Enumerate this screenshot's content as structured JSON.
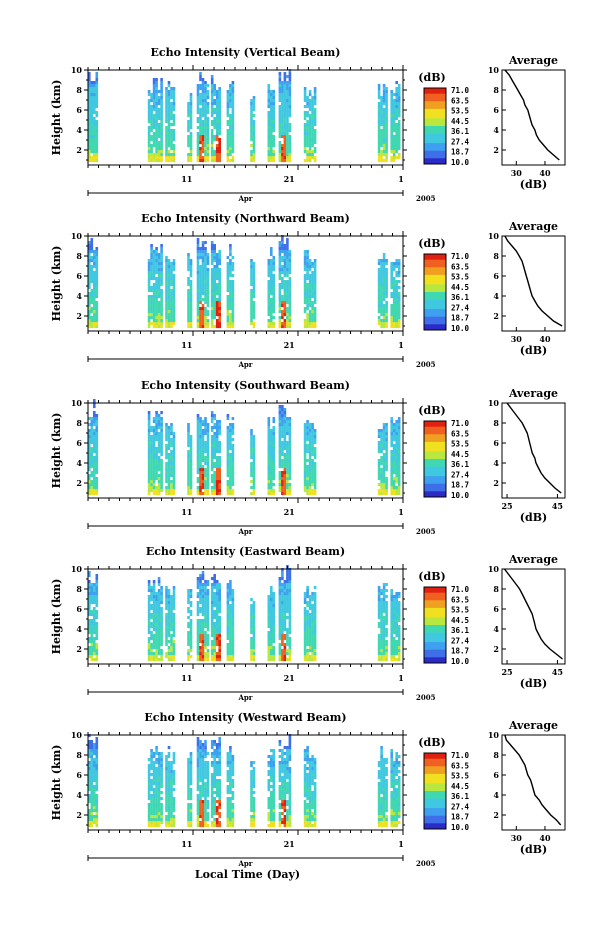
{
  "chart_data": [
    {
      "type": "heatmap",
      "title": "Echo Intensity (Vertical Beam)",
      "ylabel": "Height (km)",
      "yticks": [
        2,
        4,
        6,
        8,
        10
      ],
      "ylim": [
        0.5,
        10
      ],
      "xticks": [
        "11",
        "21",
        "1"
      ],
      "xmonth": "Apr",
      "xyear": "2005",
      "colorbar": {
        "unit": "(dB)",
        "ticks": [
          "71.0",
          "63.5",
          "53.5",
          "44.5",
          "36.1",
          "27.4",
          "18.7",
          "10.0"
        ]
      },
      "profile": {
        "title": "Average",
        "xlabel": "(dB)",
        "xticks": [
          "30",
          "40"
        ],
        "xlim": [
          25,
          47
        ],
        "yticks": [
          2,
          4,
          6,
          8,
          10
        ],
        "height": [
          10,
          9.5,
          9,
          8.5,
          8,
          7.5,
          7,
          6.5,
          6,
          5.5,
          5,
          4.5,
          4,
          3.5,
          3,
          2.5,
          2,
          1.5,
          1
        ],
        "db": [
          26,
          27.5,
          28.5,
          29.5,
          30.5,
          31.5,
          32.5,
          33,
          34,
          34.5,
          35,
          35.5,
          36.5,
          37,
          38,
          39.5,
          41,
          43,
          45
        ]
      }
    },
    {
      "type": "heatmap",
      "title": "Echo Intensity (Northward Beam)",
      "ylabel": "Height (km)",
      "yticks": [
        2,
        4,
        6,
        8,
        10
      ],
      "ylim": [
        0.5,
        10
      ],
      "xticks": [
        "11",
        "21",
        "1"
      ],
      "xmonth": "Apr",
      "xyear": "2005",
      "colorbar": {
        "unit": "(dB)",
        "ticks": [
          "71.0",
          "63.5",
          "53.5",
          "44.5",
          "36.1",
          "27.4",
          "18.7",
          "10.0"
        ]
      },
      "profile": {
        "title": "Average",
        "xlabel": "(dB)",
        "xticks": [
          "30",
          "40"
        ],
        "xlim": [
          25,
          47
        ],
        "yticks": [
          2,
          4,
          6,
          8,
          10
        ],
        "height": [
          10,
          9.5,
          9,
          8.5,
          8,
          7.5,
          7,
          6.5,
          6,
          5.5,
          5,
          4.5,
          4,
          3.5,
          3,
          2.5,
          2,
          1.5,
          1
        ],
        "db": [
          26,
          27,
          28.5,
          30,
          31,
          32,
          32.5,
          33,
          33.5,
          34,
          34.5,
          35,
          35.5,
          36.5,
          37.5,
          39,
          41,
          43,
          46
        ]
      }
    },
    {
      "type": "heatmap",
      "title": "Echo Intensity (Southward Beam)",
      "ylabel": "Height (km)",
      "yticks": [
        2,
        4,
        6,
        8,
        10
      ],
      "ylim": [
        0.5,
        10
      ],
      "xticks": [
        "11",
        "21",
        "1"
      ],
      "xmonth": "Apr",
      "xyear": "2005",
      "colorbar": {
        "unit": "(dB)",
        "ticks": [
          "71.0",
          "63.5",
          "53.5",
          "44.5",
          "36.1",
          "27.4",
          "18.7",
          "10.0"
        ]
      },
      "profile": {
        "title": "Average",
        "xlabel": "(dB)",
        "xticks": [
          "25",
          "45"
        ],
        "xlim": [
          23,
          48
        ],
        "yticks": [
          2,
          4,
          6,
          8,
          10
        ],
        "height": [
          10,
          9.5,
          9,
          8.5,
          8,
          7.5,
          7,
          6.5,
          6,
          5.5,
          5,
          4.5,
          4,
          3.5,
          3,
          2.5,
          2,
          1.5,
          1
        ],
        "db": [
          25,
          26.5,
          28,
          29.5,
          31,
          32,
          33,
          33.5,
          34,
          34.5,
          35,
          36,
          36.5,
          37.5,
          38.5,
          40,
          42,
          44,
          46.5
        ]
      }
    },
    {
      "type": "heatmap",
      "title": "Echo Intensity (Eastward Beam)",
      "ylabel": "Height (km)",
      "yticks": [
        2,
        4,
        6,
        8,
        10
      ],
      "ylim": [
        0.5,
        10
      ],
      "xticks": [
        "11",
        "21",
        "1"
      ],
      "xmonth": "Apr",
      "xyear": "2005",
      "colorbar": {
        "unit": "(dB)",
        "ticks": [
          "71.0",
          "63.5",
          "53.5",
          "44.5",
          "36.1",
          "27.4",
          "18.7",
          "10.0"
        ]
      },
      "profile": {
        "title": "Average",
        "xlabel": "(dB)",
        "xticks": [
          "25",
          "45"
        ],
        "xlim": [
          23,
          48
        ],
        "yticks": [
          2,
          4,
          6,
          8,
          10
        ],
        "height": [
          10,
          9.5,
          9,
          8.5,
          8,
          7.5,
          7,
          6.5,
          6,
          5.5,
          5,
          4.5,
          4,
          3.5,
          3,
          2.5,
          2,
          1.5,
          1
        ],
        "db": [
          24,
          25.5,
          27,
          28.5,
          30,
          31,
          32,
          33,
          34,
          35,
          35.5,
          36,
          36.5,
          37.5,
          38.5,
          40,
          42,
          44.5,
          47
        ]
      }
    },
    {
      "type": "heatmap",
      "title": "Echo Intensity (Westward Beam)",
      "ylabel": "Height (km)",
      "yticks": [
        2,
        4,
        6,
        8,
        10
      ],
      "ylim": [
        0.5,
        10
      ],
      "xticks": [
        "11",
        "21",
        "1"
      ],
      "xmonth": "Apr",
      "xyear": "2005",
      "xlabel": "Local Time (Day)",
      "colorbar": {
        "unit": "(dB)",
        "ticks": [
          "71.0",
          "63.5",
          "53.5",
          "44.5",
          "36.1",
          "27.4",
          "18.7",
          "10.0"
        ]
      },
      "profile": {
        "title": "Average",
        "xlabel": "(dB)",
        "xticks": [
          "30",
          "40"
        ],
        "xlim": [
          25,
          47
        ],
        "yticks": [
          2,
          4,
          6,
          8,
          10
        ],
        "height": [
          10,
          9.5,
          9,
          8.5,
          8,
          7.5,
          7,
          6.5,
          6,
          5.5,
          5,
          4.5,
          4,
          3.5,
          3,
          2.5,
          2,
          1.5,
          1
        ],
        "db": [
          26,
          26.5,
          28,
          29.5,
          31,
          32,
          33,
          33.5,
          34,
          35,
          35.5,
          36,
          36.5,
          38,
          39,
          40.5,
          42,
          44,
          45.5
        ]
      }
    }
  ],
  "colors": {
    "scale": [
      "#2b2bc8",
      "#3f6fe8",
      "#3fa0f0",
      "#40c8e0",
      "#40d8b0",
      "#b8e840",
      "#f0e020",
      "#f0a020",
      "#f06020",
      "#e02010"
    ]
  }
}
